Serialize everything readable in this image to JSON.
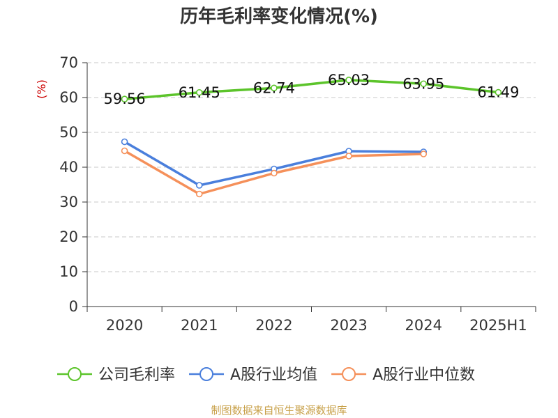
{
  "chart_data": {
    "type": "line",
    "title": "历年毛利率变化情况(%)",
    "ylabel": "(%)",
    "xlabel": "",
    "categories": [
      "2020",
      "2021",
      "2022",
      "2023",
      "2024",
      "2025H1"
    ],
    "ylim": [
      0,
      70
    ],
    "yticks": [
      0,
      10,
      20,
      30,
      40,
      50,
      60,
      70
    ],
    "grid": true,
    "legend_position": "bottom",
    "series": [
      {
        "name": "公司毛利率",
        "color": "#5cc42b",
        "values": [
          59.56,
          61.45,
          62.74,
          65.03,
          63.95,
          61.49
        ],
        "labels": [
          "59.56",
          "61.45",
          "62.74",
          "65.03",
          "63.95",
          "61.49"
        ]
      },
      {
        "name": "A股行业均值",
        "color": "#4a7fdc",
        "values": [
          47.3,
          34.8,
          39.5,
          44.6,
          44.4,
          null
        ]
      },
      {
        "name": "A股行业中位数",
        "color": "#f5905a",
        "values": [
          44.7,
          32.3,
          38.3,
          43.2,
          43.8,
          null
        ]
      }
    ],
    "source": "制图数据来自恒生聚源数据库"
  }
}
